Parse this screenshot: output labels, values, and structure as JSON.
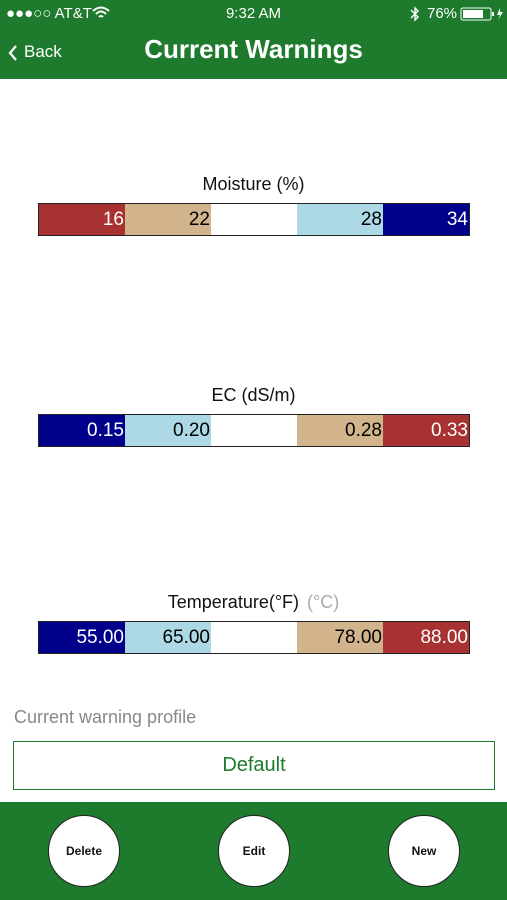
{
  "status_bar": {
    "carrier": "●●●○○ AT&T",
    "time": "9:32 AM",
    "battery": "76%"
  },
  "header": {
    "back": "Back",
    "title": "Current Warnings"
  },
  "scales": [
    {
      "label": "Moisture (%)",
      "segments": [
        {
          "text": "16",
          "color": "#a83232",
          "text_color": "#ffffff"
        },
        {
          "text": "22",
          "color": "#d2b48c",
          "text_color": "#000000"
        },
        {
          "color": "#ffffff"
        },
        {
          "text": "28",
          "color": "#add8e6",
          "text_color": "#000000"
        },
        {
          "text": "34",
          "color": "#00008b",
          "text_color": "#ffffff"
        }
      ]
    },
    {
      "label": "EC (dS/m)",
      "segments": [
        {
          "text": "0.15",
          "color": "#00008b",
          "text_color": "#ffffff"
        },
        {
          "text": "0.20",
          "color": "#add8e6",
          "text_color": "#000000"
        },
        {
          "color": "#ffffff"
        },
        {
          "text": "0.28",
          "color": "#d2b48c",
          "text_color": "#000000"
        },
        {
          "text": "0.33",
          "color": "#a83232",
          "text_color": "#ffffff"
        }
      ]
    },
    {
      "label": "Temperature(°F)",
      "label_alt": "(°C)",
      "segments": [
        {
          "text": "55.00",
          "color": "#00008b",
          "text_color": "#ffffff"
        },
        {
          "text": "65.00",
          "color": "#add8e6",
          "text_color": "#000000"
        },
        {
          "color": "#ffffff"
        },
        {
          "text": "78.00",
          "color": "#d2b48c",
          "text_color": "#000000"
        },
        {
          "text": "88.00",
          "color": "#a83232",
          "text_color": "#ffffff"
        }
      ]
    }
  ],
  "profile": {
    "label": "Current warning profile",
    "value": "Default"
  },
  "buttons": [
    "Delete",
    "Edit",
    "New"
  ]
}
